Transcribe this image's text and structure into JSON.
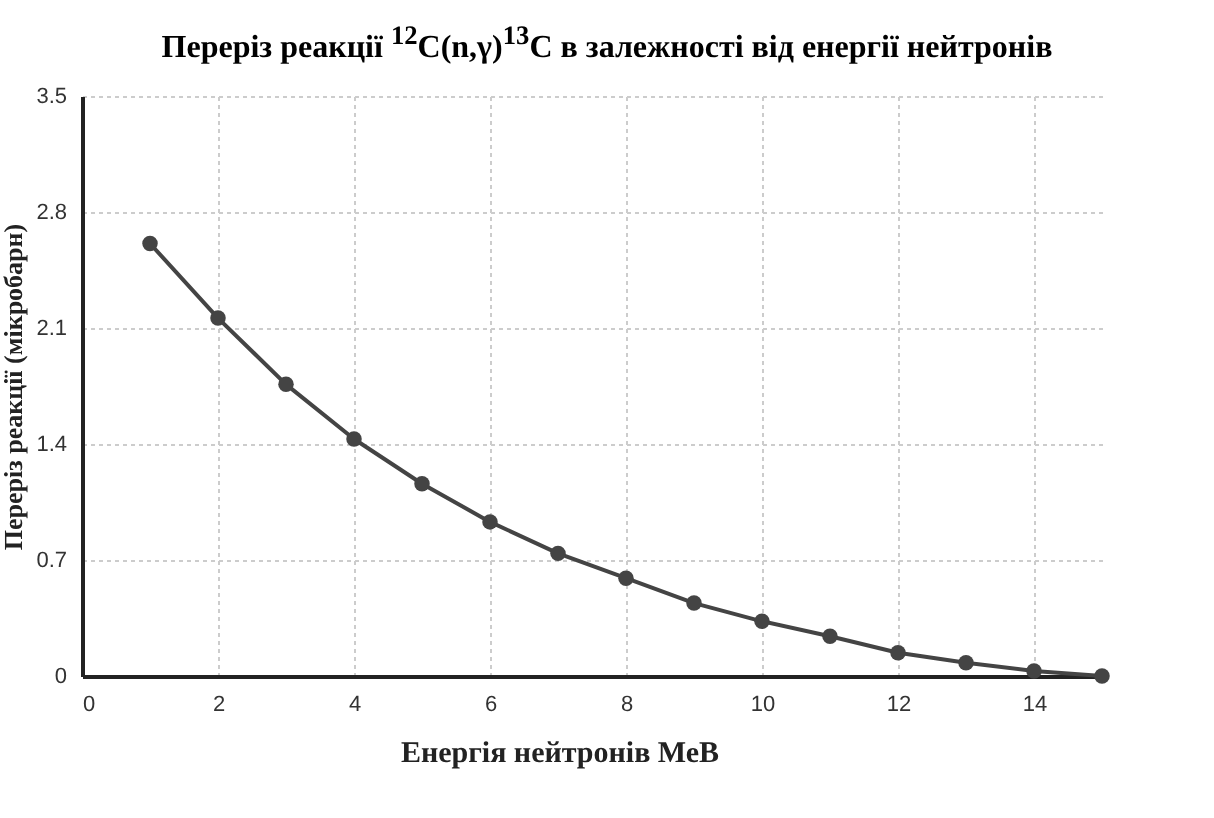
{
  "chart_data": {
    "type": "line",
    "title": "Переріз реакції  $^{12}$C(n,γ)$^{13}$C  в залежності від енергії  нейтронів",
    "xlabel": "Енергія нейтронів МеВ",
    "ylabel": "Переріз реакції  (мікробарн)",
    "x": [
      1,
      2,
      3,
      4,
      5,
      6,
      7,
      8,
      9,
      10,
      11,
      12,
      13,
      14,
      15
    ],
    "series": [
      {
        "color": "#444444",
        "values": [
          2.61,
          2.16,
          1.76,
          1.43,
          1.16,
          0.93,
          0.74,
          0.59,
          0.44,
          0.33,
          0.24,
          0.14,
          0.08,
          0.03,
          0
        ]
      }
    ],
    "xlim": [
      0,
      15
    ],
    "xticks": [
      0,
      2,
      4,
      6,
      8,
      10,
      12,
      14
    ],
    "ylim": [
      0,
      3.5
    ],
    "yticks": [
      0,
      0.7,
      1.4,
      2.1,
      2.8,
      3.5
    ],
    "grid": true,
    "marker": "circle"
  }
}
